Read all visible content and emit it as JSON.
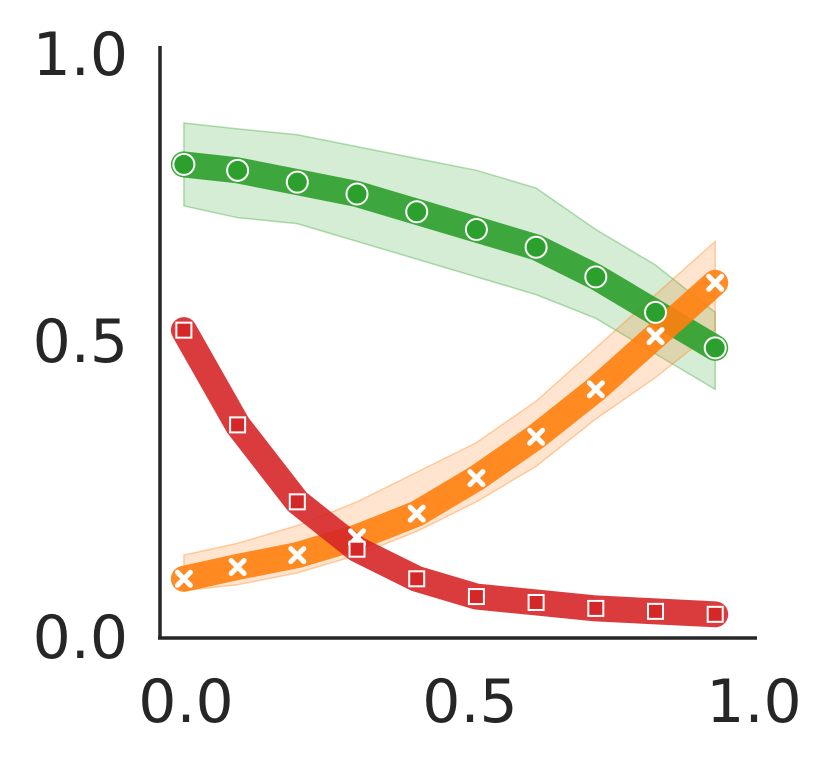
{
  "chart_data": {
    "type": "line",
    "title": "",
    "xlabel": "",
    "ylabel": "",
    "xlim": [
      0.0,
      1.0
    ],
    "ylim": [
      0.0,
      1.0
    ],
    "grid": false,
    "x_ticks": [
      "0.0",
      "0.5",
      "1.0"
    ],
    "y_ticks": [
      "0.0",
      "0.5",
      "1.0"
    ],
    "series": [
      {
        "color": "#2ca02c",
        "marker": "circle",
        "x": [
          0.04,
          0.13,
          0.23,
          0.33,
          0.43,
          0.53,
          0.63,
          0.73,
          0.83,
          0.93
        ],
        "values": [
          0.8,
          0.79,
          0.77,
          0.75,
          0.72,
          0.69,
          0.66,
          0.61,
          0.55,
          0.49
        ],
        "band_lower": [
          0.73,
          0.71,
          0.7,
          0.67,
          0.64,
          0.61,
          0.58,
          0.54,
          0.48,
          0.42
        ],
        "band_upper": [
          0.87,
          0.86,
          0.85,
          0.83,
          0.81,
          0.79,
          0.76,
          0.69,
          0.63,
          0.55
        ]
      },
      {
        "color": "#ff7f0e",
        "marker": "x",
        "x": [
          0.04,
          0.13,
          0.23,
          0.33,
          0.43,
          0.53,
          0.63,
          0.73,
          0.83,
          0.93
        ],
        "values": [
          0.1,
          0.12,
          0.14,
          0.17,
          0.21,
          0.27,
          0.34,
          0.42,
          0.51,
          0.6
        ],
        "band_lower": [
          0.08,
          0.09,
          0.11,
          0.14,
          0.18,
          0.23,
          0.29,
          0.37,
          0.44,
          0.52
        ],
        "band_upper": [
          0.14,
          0.16,
          0.19,
          0.23,
          0.28,
          0.33,
          0.4,
          0.49,
          0.58,
          0.67
        ]
      },
      {
        "color": "#d62728",
        "marker": "square",
        "x": [
          0.04,
          0.13,
          0.23,
          0.33,
          0.43,
          0.53,
          0.63,
          0.73,
          0.83,
          0.93
        ],
        "values": [
          0.52,
          0.36,
          0.23,
          0.15,
          0.1,
          0.07,
          0.06,
          0.05,
          0.045,
          0.04
        ]
      }
    ]
  }
}
